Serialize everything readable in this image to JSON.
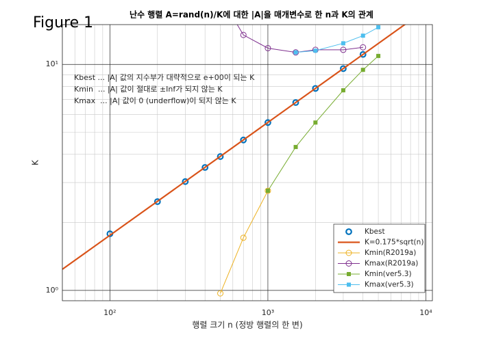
{
  "chart_data": {
    "type": "line",
    "window_label": "Figure 1",
    "title": "난수 행렬 A=rand(n)/K에 대한 |A|을 매개변수로 한 n과 K의 관계",
    "x_label": "행렬 크기 n (정방 행렬의 한 변)",
    "y_label": "K",
    "x_log": true,
    "y_log": true,
    "grid": true,
    "minor_grid": true,
    "legend": "bottom-right",
    "xlim": [
      50,
      11000
    ],
    "ylim": [
      0.9,
      15
    ],
    "xticks": [
      {
        "value": 100,
        "label": "10²"
      },
      {
        "value": 1000,
        "label": "10³"
      },
      {
        "value": 10000,
        "label": "10⁴"
      }
    ],
    "yticks": [
      {
        "value": 1,
        "label": "10⁰"
      },
      {
        "value": 10,
        "label": "10¹"
      }
    ],
    "annotations": [
      "Kbest ... |A| 값의 지수부가 대략적으로 e+00이 되는 K",
      "Kmin  ... |A| 값이 절대로 ±Inf가 되지 않는 K",
      "Kmax  ... |A| 값이 0 (underflow)이 되지 않는 K"
    ],
    "series": [
      {
        "name": "Kbest",
        "color": "#0072BD",
        "marker": "circle-bold",
        "line": false,
        "x": [
          100,
          200,
          300,
          400,
          500,
          700,
          1000,
          1500,
          2000,
          3000,
          4000
        ],
        "values": [
          1.78,
          2.47,
          3.03,
          3.5,
          3.91,
          4.63,
          5.53,
          6.78,
          7.83,
          9.58,
          11.07
        ]
      },
      {
        "name": "K=0.175*sqrt(n)",
        "color": "#D95319",
        "marker": "none",
        "line": true,
        "x": [
          50,
          11000
        ],
        "values": [
          1.24,
          18.35
        ]
      },
      {
        "name": "Kmin(R2019a)",
        "color": "#EDB120",
        "marker": "circle",
        "line": true,
        "x": [
          500,
          700,
          1000
        ],
        "values": [
          0.97,
          1.71,
          2.76
        ]
      },
      {
        "name": "Kmax(R2019a)",
        "color": "#7E2F8E",
        "marker": "circle",
        "line": true,
        "x": [
          500,
          700,
          1000,
          1500,
          2000,
          3000,
          4000
        ],
        "values": [
          20,
          13.5,
          11.8,
          11.3,
          11.6,
          11.6,
          11.9
        ]
      },
      {
        "name": "Kmin(ver5.3)",
        "color": "#77AC30",
        "marker": "square",
        "line": true,
        "x": [
          1000,
          1500,
          2000,
          3000,
          4000,
          5000
        ],
        "values": [
          2.76,
          4.31,
          5.53,
          7.68,
          9.46,
          10.9
        ]
      },
      {
        "name": "Kmax(ver5.3)",
        "color": "#4DBEEE",
        "marker": "square",
        "line": true,
        "x": [
          1500,
          2000,
          3000,
          4000,
          5000
        ],
        "values": [
          11.3,
          11.5,
          12.4,
          13.4,
          14.6
        ]
      }
    ]
  }
}
